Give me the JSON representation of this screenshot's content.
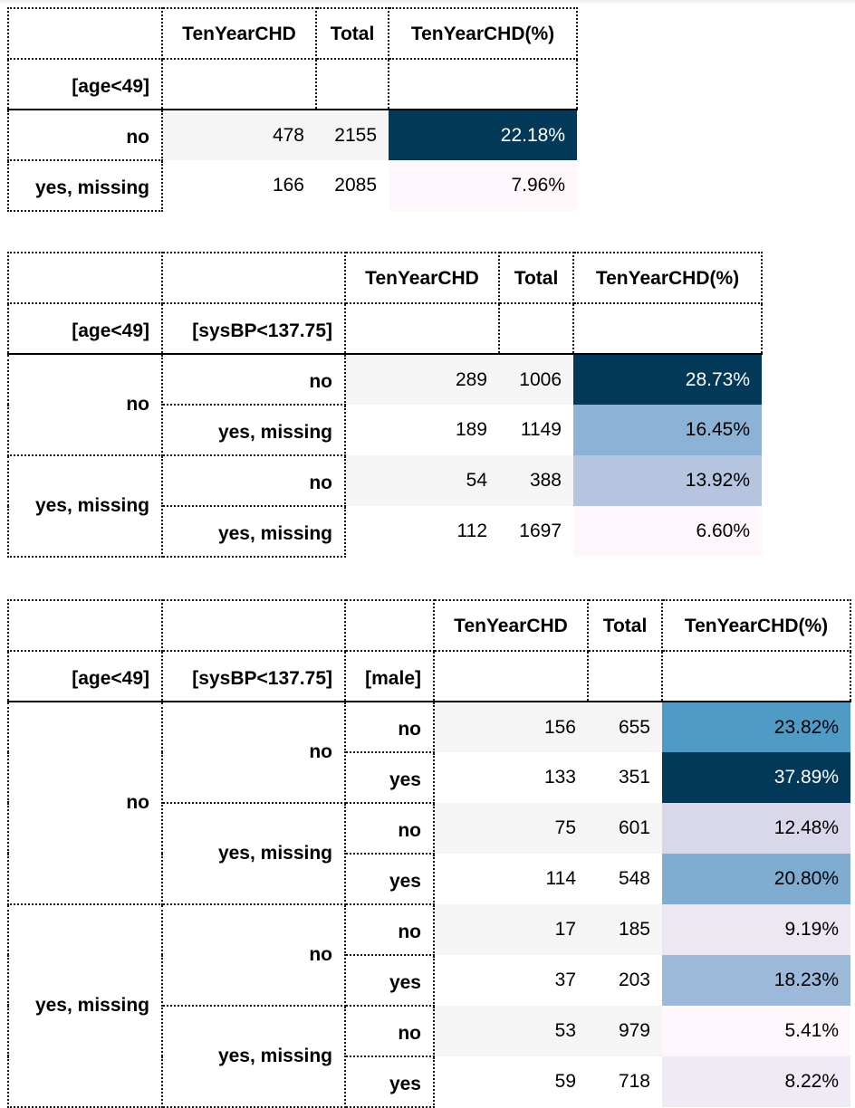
{
  "table1": {
    "index_names": [
      "[age<49]"
    ],
    "columns": [
      "TenYearCHD",
      "Total",
      "TenYearCHD(%)"
    ],
    "rows": [
      {
        "idx": [
          "no"
        ],
        "chd": "478",
        "total": "2155",
        "pct": "22.18%",
        "color": "#023858"
      },
      {
        "idx": [
          "yes, missing"
        ],
        "chd": "166",
        "total": "2085",
        "pct": "7.96%",
        "color": "#fff7fb"
      }
    ]
  },
  "table2": {
    "index_names": [
      "[age<49]",
      "[sysBP<137.75]"
    ],
    "columns": [
      "TenYearCHD",
      "Total",
      "TenYearCHD(%)"
    ],
    "groups": [
      {
        "label": "no",
        "rows": [
          {
            "idx": "no",
            "chd": "289",
            "total": "1006",
            "pct": "28.73%",
            "color": "#023858"
          },
          {
            "idx": "yes, missing",
            "chd": "189",
            "total": "1149",
            "pct": "16.45%",
            "color": "#8cb3d5"
          }
        ]
      },
      {
        "label": "yes, missing",
        "rows": [
          {
            "idx": "no",
            "chd": "54",
            "total": "388",
            "pct": "13.92%",
            "color": "#b5c4df"
          },
          {
            "idx": "yes, missing",
            "chd": "112",
            "total": "1697",
            "pct": "6.60%",
            "color": "#fff7fb"
          }
        ]
      }
    ]
  },
  "table3": {
    "index_names": [
      "[age<49]",
      "[sysBP<137.75]",
      "[male]"
    ],
    "columns": [
      "TenYearCHD",
      "Total",
      "TenYearCHD(%)"
    ],
    "groups": [
      {
        "label": "no",
        "subgroups": [
          {
            "label": "no",
            "rows": [
              {
                "idx": "no",
                "chd": "156",
                "total": "655",
                "pct": "23.82%",
                "color": "#509ac6"
              },
              {
                "idx": "yes",
                "chd": "133",
                "total": "351",
                "pct": "37.89%",
                "color": "#023858"
              }
            ]
          },
          {
            "label": "yes, missing",
            "rows": [
              {
                "idx": "no",
                "chd": "75",
                "total": "601",
                "pct": "12.48%",
                "color": "#d9d8ea"
              },
              {
                "idx": "yes",
                "chd": "114",
                "total": "548",
                "pct": "20.80%",
                "color": "#7eadd1"
              }
            ]
          }
        ]
      },
      {
        "label": "yes, missing",
        "subgroups": [
          {
            "label": "no",
            "rows": [
              {
                "idx": "no",
                "chd": "17",
                "total": "185",
                "pct": "9.19%",
                "color": "#ede7f2"
              },
              {
                "idx": "yes",
                "chd": "37",
                "total": "203",
                "pct": "18.23%",
                "color": "#9cb9d9"
              }
            ]
          },
          {
            "label": "yes, missing",
            "rows": [
              {
                "idx": "no",
                "chd": "53",
                "total": "979",
                "pct": "5.41%",
                "color": "#fff7fb"
              },
              {
                "idx": "yes",
                "chd": "59",
                "total": "718",
                "pct": "8.22%",
                "color": "#f0eaf4"
              }
            ]
          }
        ]
      }
    ]
  }
}
